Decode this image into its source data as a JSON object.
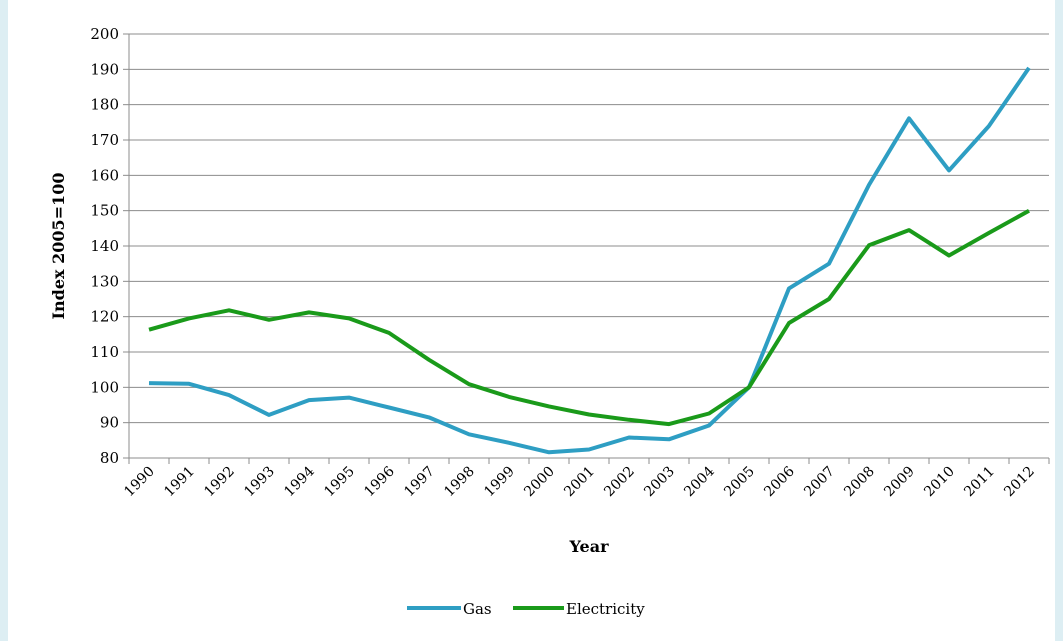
{
  "chart_data": {
    "type": "line",
    "title": "",
    "xlabel": "Year",
    "ylabel": "Index 2005=100",
    "ylim": [
      80,
      200
    ],
    "yticks": [
      80,
      90,
      100,
      110,
      120,
      130,
      140,
      150,
      160,
      170,
      180,
      190,
      200
    ],
    "categories": [
      "1990",
      "1991",
      "1992",
      "1993",
      "1994",
      "1995",
      "1996",
      "1997",
      "1998",
      "1999",
      "2000",
      "2001",
      "2002",
      "2003",
      "2004",
      "2005",
      "2006",
      "2007",
      "2008",
      "2009",
      "2010",
      "2011",
      "2012"
    ],
    "grid": true,
    "legend_position": "bottom",
    "series": [
      {
        "name": "Gas",
        "color": "#2e9ec3",
        "values": [
          101.2,
          101,
          97.8,
          92.2,
          96.4,
          97.1,
          94.3,
          91.5,
          86.7,
          84.3,
          81.6,
          82.4,
          85.8,
          85.3,
          89.2,
          100,
          128,
          135,
          157.3,
          176.1,
          161.4,
          174,
          190.4
        ]
      },
      {
        "name": "Electricity",
        "color": "#1a9a1a",
        "values": [
          116.3,
          119.5,
          121.8,
          119.1,
          121.2,
          119.5,
          115.4,
          107.8,
          100.9,
          97.3,
          94.6,
          92.3,
          90.8,
          89.6,
          92.6,
          100,
          118.2,
          125,
          140.2,
          144.5,
          137.3,
          143.7,
          150
        ]
      }
    ]
  }
}
